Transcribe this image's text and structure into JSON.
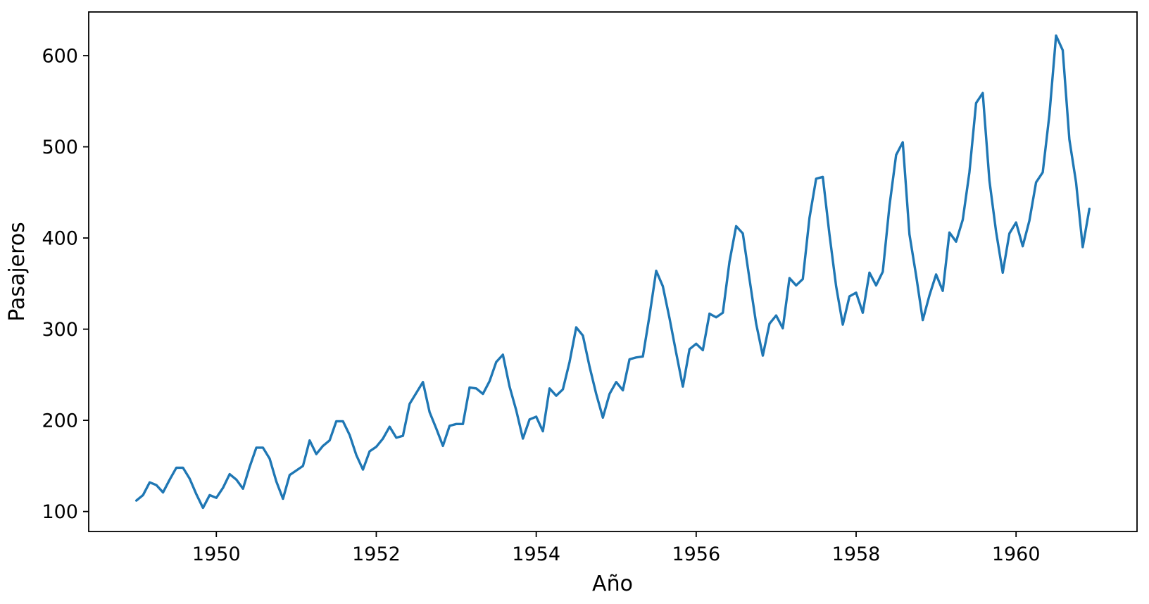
{
  "figure": {
    "background_color": "#ffffff",
    "spine_color": "#000000",
    "text_color": "#000000"
  },
  "chart_data": {
    "type": "line",
    "title": "",
    "xlabel": "Año",
    "ylabel": "Pasajeros",
    "grid": false,
    "legend_position": "none",
    "xlim": [
      1948.40417,
      1961.5125
    ],
    "ylim": [
      78.1,
      647.9
    ],
    "xticks": [
      1950,
      1952,
      1954,
      1956,
      1958,
      1960
    ],
    "yticks": [
      100,
      200,
      300,
      400,
      500,
      600
    ],
    "series": [
      {
        "name": "Pasajeros",
        "color": "#1f77b4",
        "x_start_year": 1949,
        "x_interval": "monthly",
        "values": [
          112,
          118,
          132,
          129,
          121,
          135,
          148,
          148,
          136,
          119,
          104,
          118,
          115,
          126,
          141,
          135,
          125,
          149,
          170,
          170,
          158,
          133,
          114,
          140,
          145,
          150,
          178,
          163,
          172,
          178,
          199,
          199,
          184,
          162,
          146,
          166,
          171,
          180,
          193,
          181,
          183,
          218,
          230,
          242,
          209,
          191,
          172,
          194,
          196,
          196,
          236,
          235,
          229,
          243,
          264,
          272,
          237,
          211,
          180,
          201,
          204,
          188,
          235,
          227,
          234,
          264,
          302,
          293,
          259,
          229,
          203,
          229,
          242,
          233,
          267,
          269,
          270,
          315,
          364,
          347,
          312,
          274,
          237,
          278,
          284,
          277,
          317,
          313,
          318,
          374,
          413,
          405,
          355,
          306,
          271,
          306,
          315,
          301,
          356,
          348,
          355,
          422,
          465,
          467,
          404,
          347,
          305,
          336,
          340,
          318,
          362,
          348,
          363,
          435,
          491,
          505,
          404,
          359,
          310,
          337,
          360,
          342,
          406,
          396,
          420,
          472,
          548,
          559,
          463,
          407,
          362,
          405,
          417,
          391,
          419,
          461,
          472,
          535,
          622,
          606,
          508,
          461,
          390,
          432
        ]
      }
    ]
  }
}
